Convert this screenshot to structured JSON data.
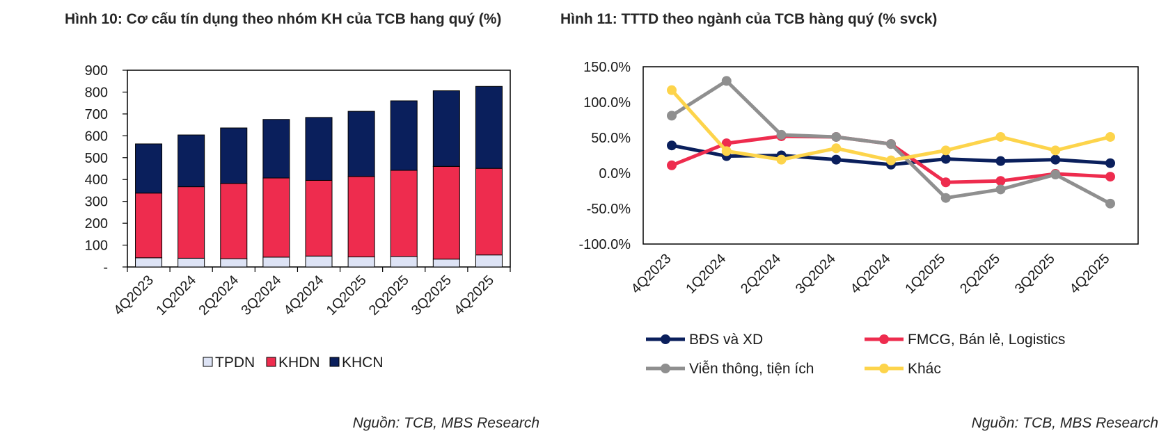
{
  "left_panel": {
    "title": "Hình 10: Cơ cấu tín dụng theo nhóm KH của TCB hang quý (%)",
    "source": "Nguồn: TCB, MBS Research"
  },
  "right_panel": {
    "title": "Hình 11: TTTD theo ngành của TCB hàng quý (% svck)",
    "source": "Nguồn: TCB, MBS Research"
  },
  "chart_data": [
    {
      "type": "bar",
      "stacked": true,
      "categories": [
        "4Q2023",
        "1Q2024",
        "2Q2024",
        "3Q2024",
        "4Q2024",
        "1Q2025",
        "2Q2025",
        "3Q2025",
        "4Q2025"
      ],
      "series": [
        {
          "name": "TPDN",
          "color": "#dde3f5",
          "values": [
            42,
            40,
            38,
            45,
            50,
            46,
            48,
            36,
            55
          ]
        },
        {
          "name": "KHDN",
          "color": "#ee2c4e",
          "values": [
            296,
            327,
            344,
            362,
            346,
            368,
            394,
            424,
            396
          ]
        },
        {
          "name": "KHCN",
          "color": "#0a1f5c",
          "values": [
            225,
            237,
            254,
            268,
            288,
            298,
            318,
            346,
            375
          ]
        }
      ],
      "yticks": [
        "-",
        "100",
        "200",
        "300",
        "400",
        "500",
        "600",
        "700",
        "800",
        "900"
      ],
      "ylim": [
        0,
        900
      ],
      "legend_position": "bottom",
      "grid": false
    },
    {
      "type": "line",
      "categories": [
        "4Q2023",
        "1Q2024",
        "2Q2024",
        "3Q2024",
        "4Q2024",
        "1Q2025",
        "2Q2025",
        "3Q2025",
        "4Q2025"
      ],
      "series": [
        {
          "name": "BĐS và XD",
          "color": "#0a1f5c",
          "values": [
            39,
            24,
            25,
            19,
            12,
            20,
            17,
            19,
            14
          ]
        },
        {
          "name": "FMCG, Bán lẻ, Logistics",
          "color": "#ee2c4e",
          "values": [
            11,
            42,
            52,
            51,
            41,
            -13,
            -11,
            -1,
            -5
          ]
        },
        {
          "name": "Viễn thông, tiện ích",
          "color": "#8f8f8f",
          "values": [
            81,
            130,
            54,
            51,
            41,
            -35,
            -23,
            -2,
            -43
          ]
        },
        {
          "name": "Khác",
          "color": "#fdd44b",
          "values": [
            117,
            31,
            19,
            35,
            18,
            32,
            51,
            32,
            51
          ]
        }
      ],
      "yticks": [
        "-100.0%",
        "-50.0%",
        "0.0%",
        "50.0%",
        "100.0%",
        "150.0%"
      ],
      "ylim": [
        -100,
        150
      ],
      "legend_position": "bottom",
      "grid": false
    }
  ]
}
